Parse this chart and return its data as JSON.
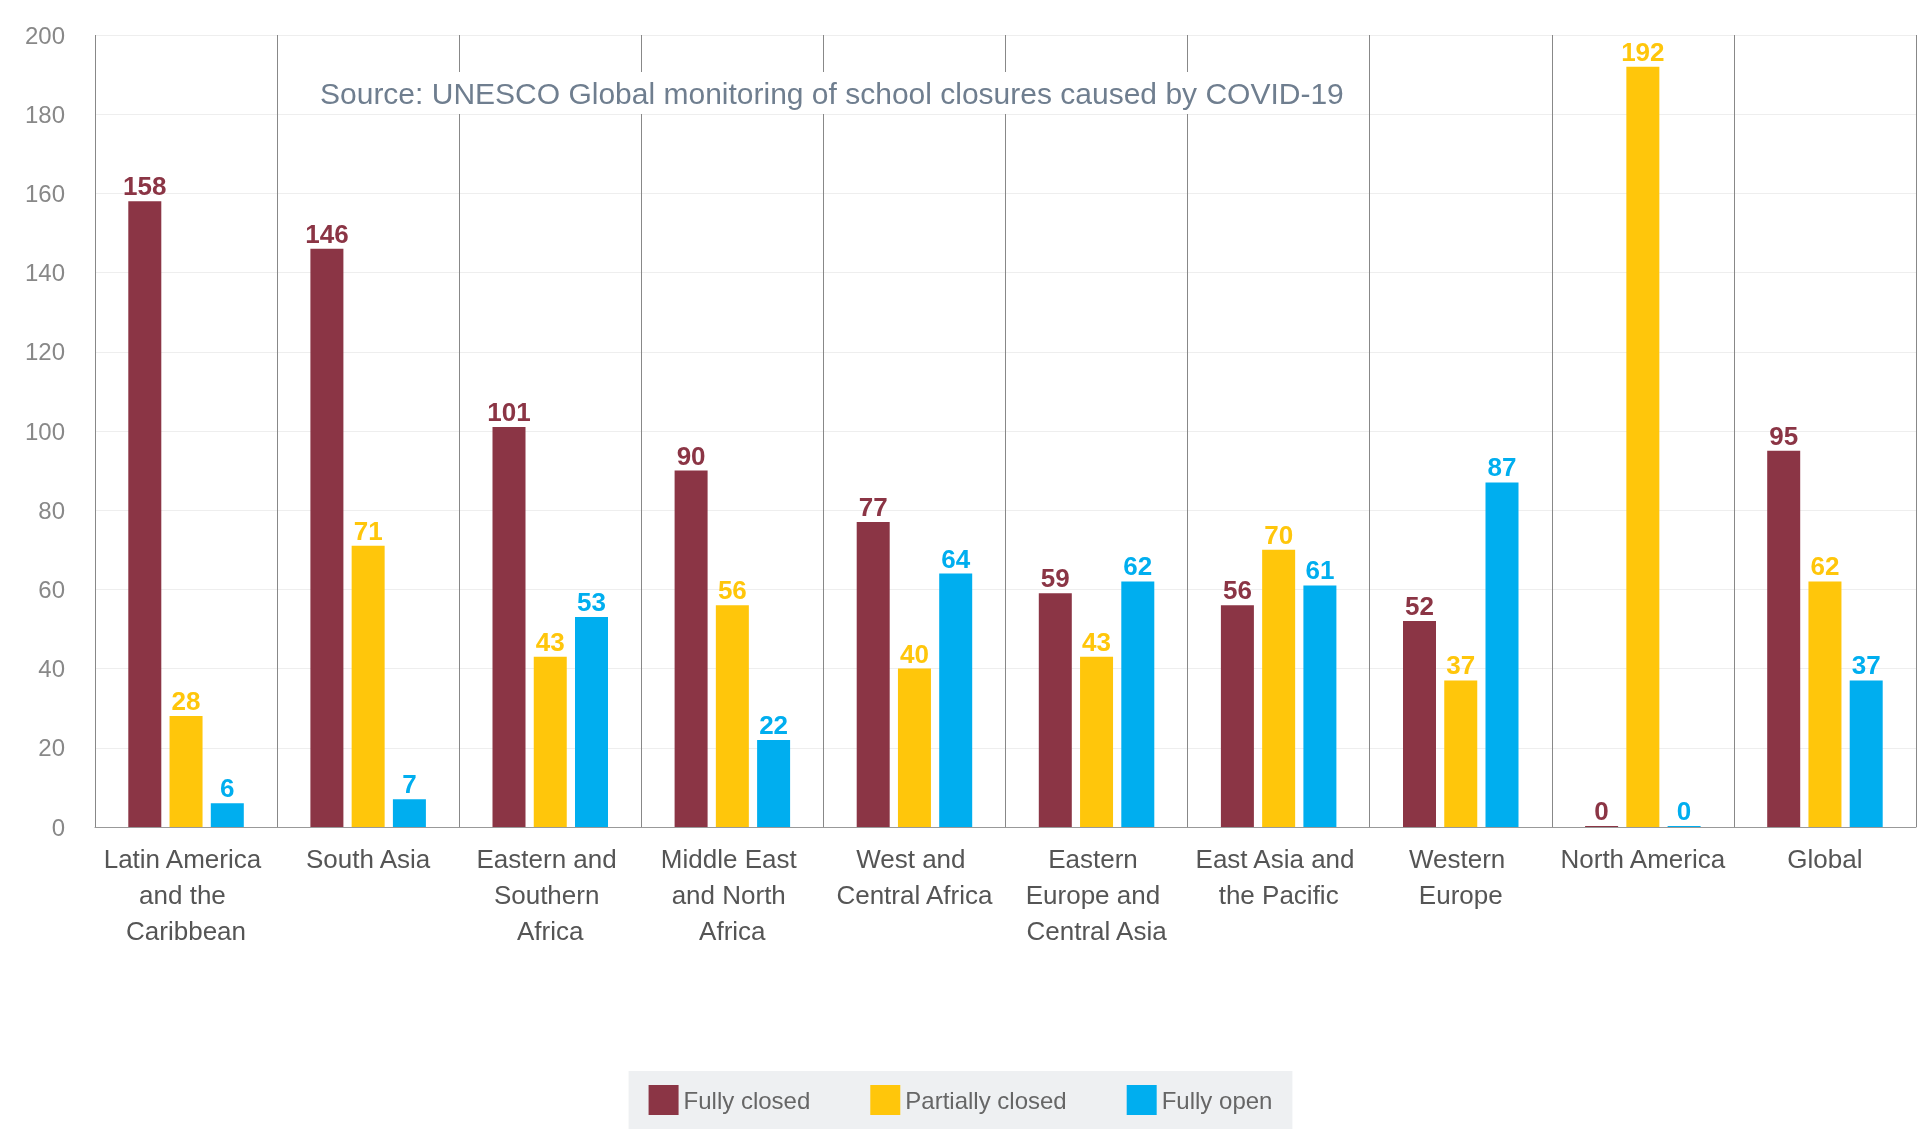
{
  "chart_data": {
    "type": "bar",
    "categories": [
      "Latin America and the Caribbean",
      "South Asia",
      "Eastern and Southern Africa",
      "Middle East and North Africa",
      "West and Central Africa",
      "Eastern Europe and Central Asia",
      "East Asia and the Pacific",
      "Western Europe",
      "North America",
      "Global"
    ],
    "series": [
      {
        "name": "Fully closed",
        "color": "#8b3545",
        "values": [
          158,
          146,
          101,
          90,
          77,
          59,
          56,
          52,
          0,
          95
        ]
      },
      {
        "name": "Partially closed",
        "color": "#ffc60b",
        "values": [
          28,
          71,
          43,
          56,
          40,
          43,
          70,
          37,
          192,
          62
        ]
      },
      {
        "name": "Fully open",
        "color": "#00aeef",
        "values": [
          6,
          7,
          53,
          22,
          64,
          62,
          61,
          87,
          0,
          37
        ]
      }
    ],
    "ylim": [
      0,
      200
    ],
    "yticks": [
      0,
      20,
      40,
      60,
      80,
      100,
      120,
      140,
      160,
      180,
      200
    ],
    "grid": true,
    "legend": "bottom",
    "data_labels": true,
    "annotations": [
      "Source: UNESCO Global monitoring of school closures caused by COVID-19"
    ]
  }
}
